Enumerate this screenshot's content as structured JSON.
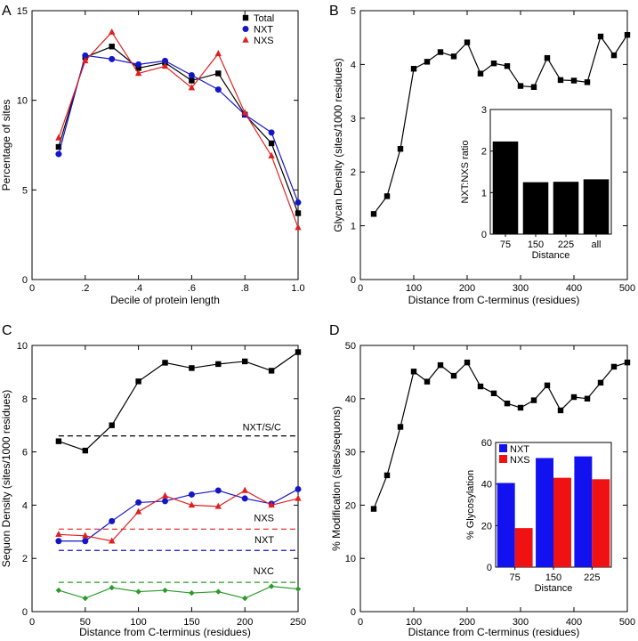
{
  "panels": {
    "A": {
      "letter": "A"
    },
    "B": {
      "letter": "B"
    },
    "C": {
      "letter": "C"
    },
    "D": {
      "letter": "D"
    }
  },
  "colors": {
    "total": "#000000",
    "nxt": "#1515c8",
    "nxs": "#e02020",
    "nxc": "#2a9a2a",
    "bar_black": "#000000",
    "bar_blue": "#1212f0",
    "bar_red": "#f01212"
  },
  "chart_data": [
    {
      "id": "A",
      "type": "line",
      "title": "",
      "xlabel": "Decile of protein length",
      "ylabel": "Percentage of sites",
      "xlim": [
        0,
        1.0
      ],
      "ylim": [
        0,
        15
      ],
      "xticks": [
        0,
        0.2,
        0.4,
        0.6,
        0.8,
        1.0
      ],
      "xticklabels": [
        "0",
        ".2",
        ".4",
        ".6",
        ".8",
        "1.0"
      ],
      "yticks": [
        0,
        5,
        10,
        15
      ],
      "yticklabels": [
        "0",
        "5",
        "10",
        "15"
      ],
      "legend_position": "top-right",
      "x": [
        0.1,
        0.2,
        0.3,
        0.4,
        0.5,
        0.6,
        0.7,
        0.8,
        0.9,
        1.0
      ],
      "series": [
        {
          "name": "Total",
          "marker": "square",
          "color": "#000000",
          "values": [
            7.4,
            12.4,
            13.0,
            11.8,
            12.1,
            11.1,
            11.5,
            9.2,
            7.6,
            3.7
          ]
        },
        {
          "name": "NXT",
          "marker": "circle",
          "color": "#1515c8",
          "values": [
            7.0,
            12.5,
            12.3,
            12.0,
            12.2,
            11.4,
            10.6,
            9.2,
            8.2,
            4.3
          ]
        },
        {
          "name": "NXS",
          "marker": "triangle",
          "color": "#e02020",
          "values": [
            7.9,
            12.2,
            13.8,
            11.5,
            11.9,
            10.7,
            12.6,
            9.3,
            6.9,
            2.9
          ]
        }
      ]
    },
    {
      "id": "B",
      "type": "line",
      "xlabel": "Distance from C-terminus (residues)",
      "ylabel": "Glycan Density (sites/1000 residues)",
      "xlim": [
        0,
        500
      ],
      "ylim": [
        0,
        5
      ],
      "xticks": [
        0,
        100,
        200,
        300,
        400,
        500
      ],
      "xticklabels": [
        "0",
        "100",
        "200",
        "300",
        "400",
        "500"
      ],
      "yticks": [
        0,
        1,
        2,
        3,
        4,
        5
      ],
      "yticklabels": [
        "0",
        "1",
        "2",
        "3",
        "4",
        "5"
      ],
      "x": [
        25,
        50,
        75,
        100,
        125,
        150,
        175,
        200,
        225,
        250,
        275,
        300,
        325,
        350,
        375,
        400,
        425,
        450,
        475,
        500
      ],
      "series": [
        {
          "name": "Glycan density",
          "marker": "square",
          "color": "#000000",
          "values": [
            1.22,
            1.55,
            2.43,
            3.92,
            4.05,
            4.23,
            4.15,
            4.41,
            3.83,
            4.02,
            3.97,
            3.6,
            3.58,
            4.12,
            3.71,
            3.7,
            3.67,
            4.52,
            4.17,
            4.55
          ]
        }
      ],
      "inset": {
        "type": "bar",
        "xlabel": "Distance",
        "ylabel": "NXT:NXS ratio",
        "ylim": [
          0,
          3
        ],
        "yticks": [
          0,
          1,
          2,
          3
        ],
        "yticklabels": [
          "0",
          "1",
          "2",
          "3"
        ],
        "categories": [
          "75",
          "150",
          "225",
          "all"
        ],
        "values": [
          2.23,
          1.25,
          1.26,
          1.32
        ],
        "color": "#000000"
      }
    },
    {
      "id": "C",
      "type": "line",
      "xlabel": "Distance from C-terminus (residues)",
      "ylabel": "Sequon Density (sites/1000 residues)",
      "xlim": [
        0,
        250
      ],
      "ylim": [
        0,
        10
      ],
      "xticks": [
        0,
        50,
        100,
        150,
        200,
        250
      ],
      "xticklabels": [
        "0",
        "50",
        "100",
        "150",
        "200",
        "250"
      ],
      "yticks": [
        0,
        2,
        4,
        6,
        8,
        10
      ],
      "yticklabels": [
        "0",
        "2",
        "4",
        "6",
        "8",
        "10"
      ],
      "x": [
        25,
        50,
        75,
        100,
        125,
        150,
        175,
        200,
        225,
        250
      ],
      "series": [
        {
          "name": "NXT/S/C",
          "marker": "square",
          "color": "#000000",
          "values": [
            6.4,
            6.05,
            7.0,
            8.65,
            9.35,
            9.15,
            9.3,
            9.4,
            9.05,
            9.75
          ]
        },
        {
          "name": "NXT",
          "marker": "circle",
          "color": "#1515c8",
          "values": [
            2.65,
            2.65,
            3.4,
            4.1,
            4.15,
            4.4,
            4.55,
            4.25,
            4.05,
            4.6
          ]
        },
        {
          "name": "NXS",
          "marker": "triangle",
          "color": "#e02020",
          "values": [
            2.9,
            2.85,
            2.65,
            3.75,
            4.35,
            4.0,
            3.95,
            4.55,
            4.0,
            4.25
          ]
        },
        {
          "name": "NXC",
          "marker": "diamond",
          "color": "#2a9a2a",
          "values": [
            0.8,
            0.5,
            0.9,
            0.75,
            0.8,
            0.7,
            0.75,
            0.5,
            0.95,
            0.85
          ]
        }
      ],
      "reference_lines": [
        {
          "label": "NXT/S/C",
          "y": 6.6,
          "color": "#000000"
        },
        {
          "label": "NXS",
          "y": 3.1,
          "color": "#e02020"
        },
        {
          "label": "NXT",
          "y": 2.3,
          "color": "#1515c8"
        },
        {
          "label": "NXC",
          "y": 1.1,
          "color": "#2a9a2a"
        }
      ]
    },
    {
      "id": "D",
      "type": "line",
      "xlabel": "Distance from C-terminus (residues)",
      "ylabel": "% Modification (sites/sequons)",
      "xlim": [
        0,
        500
      ],
      "ylim": [
        0,
        50
      ],
      "xticks": [
        0,
        100,
        200,
        300,
        400,
        500
      ],
      "xticklabels": [
        "0",
        "100",
        "200",
        "300",
        "400",
        "500"
      ],
      "yticks": [
        0,
        10,
        20,
        30,
        40,
        50
      ],
      "yticklabels": [
        "0",
        "10",
        "20",
        "30",
        "40",
        "50"
      ],
      "x": [
        25,
        50,
        75,
        100,
        125,
        150,
        175,
        200,
        225,
        250,
        275,
        300,
        325,
        350,
        375,
        400,
        425,
        450,
        475,
        500
      ],
      "series": [
        {
          "name": "% Modification",
          "marker": "square",
          "color": "#000000",
          "values": [
            19.3,
            25.6,
            34.7,
            45.1,
            43.2,
            46.3,
            44.3,
            46.8,
            42.3,
            41.0,
            39.1,
            38.3,
            39.7,
            42.5,
            37.8,
            40.3,
            40.0,
            43.0,
            46.0,
            46.8
          ]
        }
      ],
      "inset": {
        "type": "bar",
        "xlabel": "Distance",
        "ylabel": "% Glycosylation",
        "ylim": [
          0,
          60
        ],
        "yticks": [
          0,
          20,
          40,
          60
        ],
        "yticklabels": [
          "0",
          "20",
          "40",
          "60"
        ],
        "categories": [
          "75",
          "150",
          "225"
        ],
        "legend_position": "top-left",
        "series": [
          {
            "name": "NXT",
            "color": "#1212f0",
            "values": [
              40.5,
              52.5,
              53.3
            ]
          },
          {
            "name": "NXS",
            "color": "#f01212",
            "values": [
              18.8,
              43.0,
              42.3
            ]
          }
        ]
      }
    }
  ]
}
